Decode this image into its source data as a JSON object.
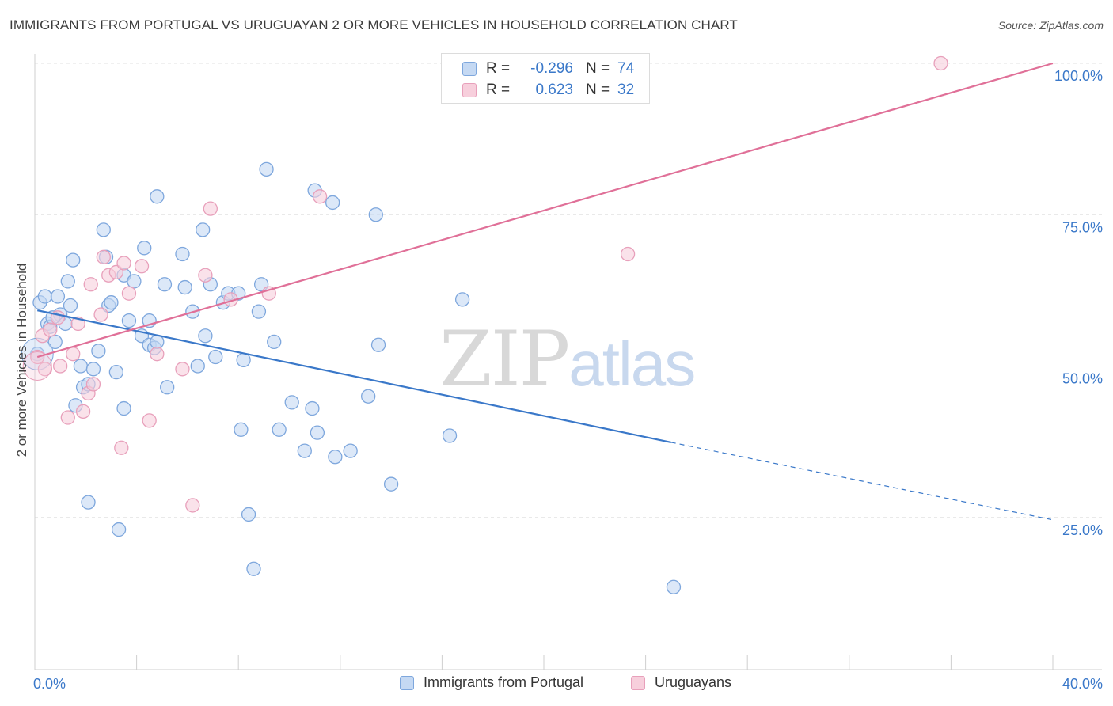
{
  "title": "IMMIGRANTS FROM PORTUGAL VS URUGUAYAN 2 OR MORE VEHICLES IN HOUSEHOLD CORRELATION CHART",
  "source": "Source: ZipAtlas.com",
  "watermark": {
    "zip": "ZIP",
    "atlas": "atlas"
  },
  "colors": {
    "blue": "#3a78c9",
    "blue_fill": "#c5d9f3",
    "blue_stroke": "#7ea7dd",
    "pink": "#e07098",
    "pink_fill": "#f7cfdc",
    "pink_stroke": "#e8a0bb"
  },
  "legend": {
    "rows": [
      {
        "r_label": "R =",
        "r_value": "-0.296",
        "n_label": "N =",
        "n_value": "74"
      },
      {
        "r_label": "R =",
        "r_value": "0.623",
        "n_label": "N =",
        "n_value": "32"
      }
    ]
  },
  "bottom_legend": {
    "series1": "Immigrants from Portugal",
    "series2": "Uruguayans"
  },
  "chart_data": {
    "type": "scatter",
    "title": "IMMIGRANTS FROM PORTUGAL VS URUGUAYAN 2 OR MORE VEHICLES IN HOUSEHOLD CORRELATION CHART",
    "xlabel": "",
    "ylabel": "2 or more Vehicles in Household",
    "xlim": [
      0,
      40
    ],
    "ylim": [
      0,
      100
    ],
    "x_tick_labels": [
      "0.0%",
      "40.0%"
    ],
    "y_ticks": [
      25,
      50,
      75,
      100
    ],
    "y_tick_labels": [
      "25.0%",
      "50.0%",
      "75.0%",
      "100.0%"
    ],
    "grid": true,
    "series": [
      {
        "name": "Immigrants from Portugal",
        "color": "#3a78c9",
        "trend": {
          "x0": 0.1,
          "y0": 59.2,
          "x1": 25.0,
          "y1": 37.4,
          "dash_to_x": 40.0,
          "dash_to_y": 24.6
        },
        "points": [
          [
            0.1,
            52.0
          ],
          [
            0.2,
            60.5
          ],
          [
            0.4,
            61.5
          ],
          [
            0.5,
            57.0
          ],
          [
            0.6,
            56.5
          ],
          [
            0.8,
            54.0
          ],
          [
            0.9,
            61.5
          ],
          [
            1.0,
            58.5
          ],
          [
            1.2,
            57.0
          ],
          [
            1.4,
            60.0
          ],
          [
            1.5,
            67.5
          ],
          [
            1.8,
            50.0
          ],
          [
            1.9,
            46.5
          ],
          [
            2.1,
            47.0
          ],
          [
            2.3,
            49.5
          ],
          [
            2.5,
            52.5
          ],
          [
            2.7,
            72.5
          ],
          [
            2.9,
            60.0
          ],
          [
            3.0,
            60.5
          ],
          [
            3.2,
            49.0
          ],
          [
            3.5,
            65.0
          ],
          [
            3.7,
            57.5
          ],
          [
            3.9,
            64.0
          ],
          [
            4.2,
            55.0
          ],
          [
            4.5,
            57.5
          ],
          [
            4.5,
            53.5
          ],
          [
            4.7,
            53.0
          ],
          [
            4.8,
            54.0
          ],
          [
            4.8,
            78.0
          ],
          [
            5.1,
            63.5
          ],
          [
            5.2,
            46.5
          ],
          [
            5.8,
            68.5
          ],
          [
            5.9,
            63.0
          ],
          [
            6.2,
            59.0
          ],
          [
            6.4,
            50.0
          ],
          [
            6.6,
            72.5
          ],
          [
            6.7,
            55.0
          ],
          [
            6.9,
            63.5
          ],
          [
            7.1,
            51.5
          ],
          [
            7.4,
            60.5
          ],
          [
            7.6,
            62.0
          ],
          [
            8.0,
            62.0
          ],
          [
            8.1,
            39.5
          ],
          [
            8.2,
            51.0
          ],
          [
            8.4,
            25.5
          ],
          [
            8.6,
            16.5
          ],
          [
            8.8,
            59.0
          ],
          [
            8.9,
            63.5
          ],
          [
            9.1,
            82.5
          ],
          [
            9.4,
            54.0
          ],
          [
            9.6,
            39.5
          ],
          [
            10.1,
            44.0
          ],
          [
            10.6,
            36.0
          ],
          [
            10.9,
            43.0
          ],
          [
            11.0,
            79.0
          ],
          [
            11.1,
            39.0
          ],
          [
            11.7,
            77.0
          ],
          [
            11.8,
            35.0
          ],
          [
            12.4,
            36.0
          ],
          [
            13.1,
            45.0
          ],
          [
            13.4,
            75.0
          ],
          [
            13.5,
            53.5
          ],
          [
            14.0,
            30.5
          ],
          [
            16.3,
            38.5
          ],
          [
            16.8,
            61.0
          ],
          [
            25.1,
            13.5
          ],
          [
            2.1,
            27.5
          ],
          [
            3.3,
            23.0
          ],
          [
            1.6,
            43.5
          ],
          [
            3.5,
            43.0
          ],
          [
            1.3,
            64.0
          ],
          [
            2.8,
            68.0
          ],
          [
            0.7,
            58.0
          ],
          [
            4.3,
            69.5
          ]
        ]
      },
      {
        "name": "Uruguayans",
        "color": "#e07098",
        "trend": {
          "x0": 0.1,
          "y0": 51.5,
          "x1": 40.0,
          "y1": 100.0
        },
        "points": [
          [
            0.1,
            51.5
          ],
          [
            0.3,
            55.0
          ],
          [
            0.6,
            56.0
          ],
          [
            0.9,
            58.0
          ],
          [
            1.0,
            50.0
          ],
          [
            1.3,
            41.5
          ],
          [
            1.5,
            52.0
          ],
          [
            1.7,
            57.0
          ],
          [
            1.9,
            42.5
          ],
          [
            2.1,
            45.5
          ],
          [
            2.3,
            47.0
          ],
          [
            2.6,
            58.5
          ],
          [
            2.7,
            68.0
          ],
          [
            2.9,
            65.0
          ],
          [
            3.2,
            65.5
          ],
          [
            3.4,
            36.5
          ],
          [
            3.5,
            67.0
          ],
          [
            3.7,
            62.0
          ],
          [
            4.2,
            66.5
          ],
          [
            4.5,
            41.0
          ],
          [
            4.8,
            52.0
          ],
          [
            5.8,
            49.5
          ],
          [
            6.2,
            27.0
          ],
          [
            6.7,
            65.0
          ],
          [
            6.9,
            76.0
          ],
          [
            7.7,
            61.0
          ],
          [
            9.2,
            62.0
          ],
          [
            11.2,
            78.0
          ],
          [
            23.3,
            68.5
          ],
          [
            35.6,
            100.0
          ],
          [
            2.2,
            63.5
          ],
          [
            0.4,
            49.5
          ]
        ]
      }
    ]
  }
}
